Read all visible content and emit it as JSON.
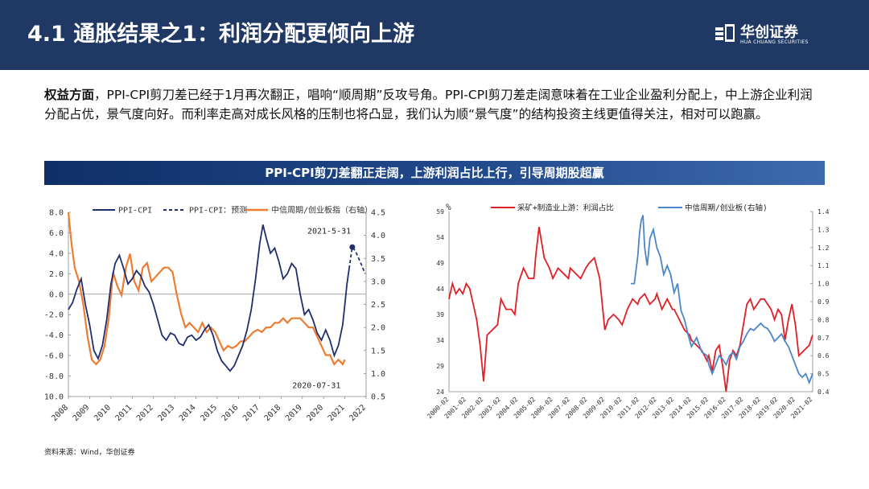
{
  "header": {
    "title": "4.1 通胀结果之1：利润分配更倾向上游",
    "brand_cn": "华创证券",
    "brand_en": "HUA CHUANG SECURITIES",
    "bg_color": "#1f3864"
  },
  "intro": {
    "bold": "权益方面",
    "text": "，PPI-CPI剪刀差已经于1月再次翻正，唱响“顺周期”反攻号角。PPI-CPI剪刀差走阔意味着在工业企业盈利分配上，中上游企业利润分配占优，景气度向好。而利率走高对成长风格的压制也将凸显，我们认为顺“景气度”的结构投资主线更值得关注，相对可以跑赢。"
  },
  "banner": {
    "text": "PPI-CPI剪刀差翻正走阔，上游利润占比上行，引导周期股超赢"
  },
  "source": {
    "text": "资料来源：Wind，华创证券"
  },
  "chart_data": [
    {
      "type": "line",
      "legend": [
        "PPI-CPI",
        "PPI-CPI：预测",
        "中信周期/创业板指（右轴）"
      ],
      "colors": {
        "ppi_cpi": "#1f2e6e",
        "forecast": "#1f2e6e",
        "ratio": "#ed7d31"
      },
      "x_ticks": [
        "2008",
        "2009",
        "2010",
        "2011",
        "2012",
        "2013",
        "2014",
        "2015",
        "2016",
        "2017",
        "2018",
        "2019",
        "2020",
        "2021",
        "2022"
      ],
      "xlim": [
        2008,
        2022
      ],
      "y_left": {
        "ticks": [
          "8.0",
          "6.0",
          "4.0",
          "2.0",
          "0.0",
          "-2.0",
          "-4.0",
          "-6.0",
          "-8.0",
          "-10.0"
        ],
        "ylim": [
          -10,
          8
        ]
      },
      "y_right": {
        "ticks": [
          "4.5",
          "4.0",
          "3.5",
          "3.0",
          "2.5",
          "2.0",
          "1.5",
          "1.0",
          "0.5"
        ],
        "ylim": [
          0.5,
          4.5
        ]
      },
      "annotations": [
        {
          "text": "2021-5-31",
          "x": 2021.4,
          "y": 4.6,
          "axis": "left"
        },
        {
          "text": "2020-07-31",
          "x": 2020.58,
          "y": -6.6,
          "axis": "left"
        }
      ],
      "series": [
        {
          "name": "PPI-CPI",
          "axis": "left",
          "x": [
            2008.0,
            2008.2,
            2008.4,
            2008.6,
            2008.8,
            2009.0,
            2009.2,
            2009.4,
            2009.6,
            2009.8,
            2010.0,
            2010.2,
            2010.4,
            2010.6,
            2010.8,
            2011.0,
            2011.2,
            2011.4,
            2011.6,
            2011.8,
            2012.0,
            2012.2,
            2012.4,
            2012.6,
            2012.8,
            2013.0,
            2013.2,
            2013.4,
            2013.6,
            2013.8,
            2014.0,
            2014.2,
            2014.4,
            2014.6,
            2014.8,
            2015.0,
            2015.2,
            2015.4,
            2015.6,
            2015.8,
            2016.0,
            2016.2,
            2016.4,
            2016.6,
            2016.8,
            2017.0,
            2017.15,
            2017.3,
            2017.5,
            2017.7,
            2017.9,
            2018.1,
            2018.3,
            2018.5,
            2018.7,
            2018.9,
            2019.1,
            2019.3,
            2019.5,
            2019.7,
            2019.9,
            2020.1,
            2020.3,
            2020.5,
            2020.7,
            2020.9,
            2021.0,
            2021.1,
            2021.2
          ],
          "values": [
            -1.5,
            -0.8,
            0.5,
            1.5,
            -1.0,
            -3.0,
            -5.5,
            -6.3,
            -5.0,
            -2.5,
            1.0,
            3.0,
            3.8,
            2.5,
            1.0,
            1.5,
            2.3,
            1.8,
            0.8,
            0.2,
            -1.0,
            -2.5,
            -4.0,
            -4.5,
            -3.8,
            -4.0,
            -4.8,
            -5.0,
            -4.2,
            -4.0,
            -4.5,
            -4.2,
            -3.5,
            -3.0,
            -4.0,
            -5.5,
            -6.5,
            -7.0,
            -7.5,
            -7.0,
            -6.0,
            -5.0,
            -3.5,
            -1.5,
            1.5,
            5.0,
            6.8,
            5.5,
            4.0,
            4.5,
            3.2,
            1.5,
            2.0,
            3.0,
            2.5,
            0.0,
            -2.0,
            -1.5,
            -2.5,
            -3.8,
            -4.5,
            -3.5,
            -4.5,
            -6.0,
            -5.0,
            -3.0,
            -1.0,
            1.0,
            2.5
          ]
        },
        {
          "name": "PPI-CPI：预测",
          "axis": "left",
          "x": [
            2021.2,
            2021.35,
            2021.5,
            2021.65,
            2021.8,
            2021.95
          ],
          "values": [
            2.5,
            4.6,
            4.2,
            3.5,
            2.8,
            2.0
          ]
        },
        {
          "name": "中信周期/创业板指（右轴）",
          "axis": "right",
          "x": [
            2008.0,
            2008.15,
            2008.3,
            2008.5,
            2008.7,
            2008.9,
            2009.1,
            2009.3,
            2009.5,
            2009.7,
            2009.9,
            2010.1,
            2010.3,
            2010.5,
            2010.7,
            2010.9,
            2011.1,
            2011.3,
            2011.5,
            2011.7,
            2011.9,
            2012.1,
            2012.3,
            2012.5,
            2012.7,
            2012.9,
            2013.1,
            2013.3,
            2013.5,
            2013.7,
            2013.9,
            2014.1,
            2014.3,
            2014.5,
            2014.7,
            2014.9,
            2015.1,
            2015.3,
            2015.5,
            2015.7,
            2015.9,
            2016.1,
            2016.3,
            2016.5,
            2016.7,
            2016.9,
            2017.1,
            2017.3,
            2017.5,
            2017.7,
            2017.9,
            2018.1,
            2018.3,
            2018.5,
            2018.7,
            2018.9,
            2019.1,
            2019.3,
            2019.5,
            2019.7,
            2019.9,
            2020.1,
            2020.3,
            2020.5,
            2020.7,
            2020.9,
            2021.0
          ],
          "values": [
            4.5,
            3.8,
            3.3,
            3.0,
            2.5,
            1.8,
            1.3,
            1.2,
            1.3,
            1.6,
            2.2,
            3.2,
            2.9,
            2.7,
            3.3,
            3.6,
            3.0,
            2.8,
            3.3,
            3.4,
            3.0,
            3.1,
            3.2,
            3.3,
            3.3,
            3.2,
            2.7,
            2.3,
            2.0,
            2.1,
            2.0,
            1.9,
            2.1,
            1.9,
            2.0,
            1.9,
            1.7,
            1.5,
            1.6,
            1.55,
            1.6,
            1.7,
            1.7,
            1.8,
            1.9,
            1.95,
            1.9,
            2.0,
            2.0,
            2.1,
            2.1,
            2.2,
            2.1,
            2.2,
            2.2,
            2.2,
            2.1,
            2.0,
            2.0,
            1.8,
            1.6,
            1.4,
            1.4,
            1.2,
            1.3,
            1.2,
            1.3
          ]
        }
      ]
    },
    {
      "type": "line",
      "unit": "%",
      "legend": [
        "采矿+制造业上游：利润占比",
        "中信周期/创业板(右轴)"
      ],
      "colors": {
        "profit": "#e01f26",
        "ratio": "#4a86c8"
      },
      "x_ticks": [
        "2000-02",
        "2001-02",
        "2002-02",
        "2003-02",
        "2004-02",
        "2005-02",
        "2006-02",
        "2007-02",
        "2008-02",
        "2009-02",
        "2010-02",
        "2011-02",
        "2012-02",
        "2013-02",
        "2014-02",
        "2015-02",
        "2016-02",
        "2017-02",
        "2018-02",
        "2019-02",
        "2020-02",
        "2021-02"
      ],
      "xlim": [
        2000,
        2021
      ],
      "y_left": {
        "ticks": [
          "59",
          "54",
          "49",
          "44",
          "39",
          "34",
          "29",
          "24"
        ],
        "ylim": [
          24,
          59
        ]
      },
      "y_right": {
        "ticks": [
          "1.40",
          "1.30",
          "1.20",
          "1.10",
          "1.00",
          "0.90",
          "0.80",
          "0.70",
          "0.60",
          "0.50",
          "0.40"
        ],
        "ylim": [
          0.4,
          1.4
        ]
      },
      "series": [
        {
          "name": "采矿+制造业上游：利润占比",
          "axis": "left",
          "x": [
            2000.0,
            2000.2,
            2000.4,
            2000.6,
            2000.8,
            2001.0,
            2001.2,
            2001.4,
            2001.6,
            2001.8,
            2002.0,
            2002.2,
            2002.5,
            2002.8,
            2003.0,
            2003.3,
            2003.6,
            2003.8,
            2004.0,
            2004.3,
            2004.6,
            2004.9,
            2005.0,
            2005.2,
            2005.5,
            2005.8,
            2006.0,
            2006.3,
            2006.6,
            2006.9,
            2007.0,
            2007.3,
            2007.6,
            2007.9,
            2008.1,
            2008.4,
            2008.7,
            2009.0,
            2009.2,
            2009.5,
            2009.8,
            2010.0,
            2010.3,
            2010.6,
            2010.9,
            2011.0,
            2011.3,
            2011.6,
            2011.9,
            2012.0,
            2012.3,
            2012.6,
            2012.9,
            2013.0,
            2013.3,
            2013.6,
            2013.9,
            2014.0,
            2014.3,
            2014.6,
            2014.9,
            2015.0,
            2015.2,
            2015.4,
            2015.6,
            2015.8,
            2016.0,
            2016.2,
            2016.4,
            2016.6,
            2016.8,
            2017.0,
            2017.2,
            2017.4,
            2017.6,
            2017.8,
            2018.0,
            2018.2,
            2018.4,
            2018.6,
            2018.8,
            2019.0,
            2019.2,
            2019.4,
            2019.6,
            2019.8,
            2020.0,
            2020.2,
            2020.5,
            2020.8,
            2021.0
          ],
          "values": [
            42,
            45,
            43,
            44,
            43,
            45,
            44,
            41,
            38,
            33,
            26,
            35,
            36,
            37,
            42,
            40,
            40,
            39,
            45,
            48,
            46,
            46,
            50,
            56,
            50,
            48,
            46,
            48,
            47,
            46,
            48,
            47,
            46,
            48,
            49,
            50,
            46,
            36,
            38,
            39,
            38,
            37,
            40,
            42,
            41,
            42,
            43,
            41,
            42,
            43,
            40,
            42,
            40,
            40,
            38,
            36,
            35,
            34,
            33,
            32,
            30,
            31,
            28,
            32,
            33,
            29,
            24,
            30,
            32,
            31,
            33,
            37,
            41,
            42,
            40,
            41,
            42,
            42,
            41,
            40,
            38,
            40,
            39,
            34,
            38,
            41,
            37,
            31,
            32,
            33,
            35
          ]
        },
        {
          "name": "中信周期/创业板(右轴)",
          "axis": "right",
          "x": [
            2010.5,
            2010.7,
            2010.9,
            2011.0,
            2011.1,
            2011.2,
            2011.3,
            2011.45,
            2011.6,
            2011.8,
            2012.0,
            2012.2,
            2012.4,
            2012.6,
            2012.8,
            2013.0,
            2013.2,
            2013.4,
            2013.6,
            2013.8,
            2014.0,
            2014.3,
            2014.6,
            2014.9,
            2015.0,
            2015.2,
            2015.4,
            2015.6,
            2015.8,
            2016.0,
            2016.2,
            2016.4,
            2016.6,
            2016.8,
            2017.0,
            2017.2,
            2017.4,
            2017.6,
            2017.8,
            2018.0,
            2018.2,
            2018.4,
            2018.6,
            2018.8,
            2019.0,
            2019.2,
            2019.4,
            2019.6,
            2019.8,
            2020.0,
            2020.2,
            2020.4,
            2020.6,
            2020.8,
            2021.0
          ],
          "values": [
            1.0,
            1.0,
            1.15,
            1.28,
            1.35,
            1.38,
            1.2,
            1.1,
            1.25,
            1.3,
            1.2,
            1.15,
            1.05,
            1.1,
            1.05,
            0.95,
            1.0,
            0.85,
            0.8,
            0.72,
            0.65,
            0.7,
            0.62,
            0.6,
            0.55,
            0.5,
            0.55,
            0.6,
            0.58,
            0.55,
            0.6,
            0.62,
            0.58,
            0.65,
            0.68,
            0.72,
            0.75,
            0.74,
            0.76,
            0.78,
            0.76,
            0.75,
            0.72,
            0.68,
            0.7,
            0.72,
            0.68,
            0.65,
            0.6,
            0.55,
            0.5,
            0.48,
            0.5,
            0.45,
            0.5
          ]
        }
      ]
    }
  ]
}
